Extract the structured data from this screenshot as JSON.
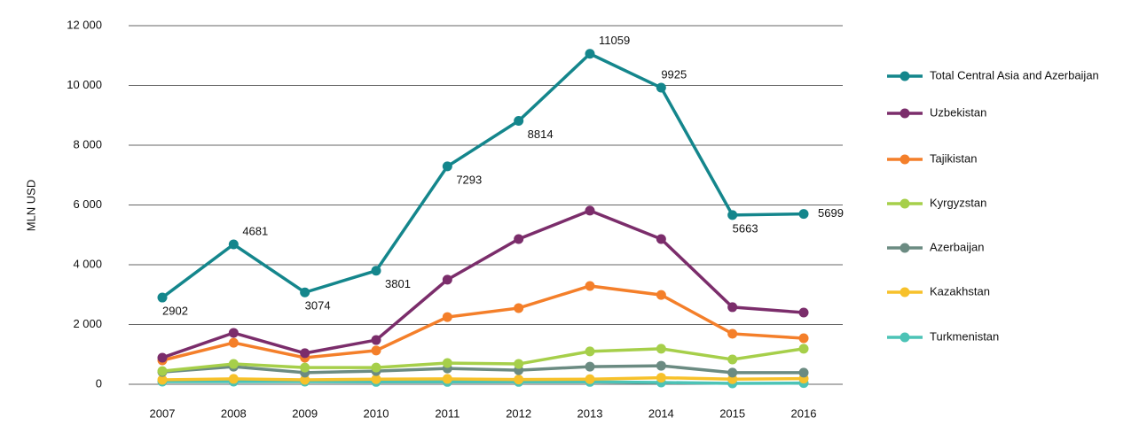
{
  "chart_data": {
    "type": "line",
    "y_label": "MLN USD",
    "categories": [
      "2007",
      "2008",
      "2009",
      "2010",
      "2011",
      "2012",
      "2013",
      "2014",
      "2015",
      "2016"
    ],
    "ylim": [
      0,
      12000
    ],
    "yticks": [
      0,
      {
        "value": 2000,
        "label": "2 000"
      },
      {
        "value": 4000,
        "label": "4 000"
      },
      {
        "value": 6000,
        "label": "6 000"
      },
      {
        "value": 8000,
        "label": "8 000"
      },
      {
        "value": 10000,
        "label": "10 000"
      },
      {
        "value": 12000,
        "label": "12 000"
      }
    ],
    "grid": true,
    "legend": "right",
    "series": [
      {
        "name": "Total Central Asia and Azerbaijan",
        "color": "#14868c",
        "show_labels": true,
        "values": [
          2902,
          4681,
          3074,
          3801,
          7293,
          8814,
          11059,
          9925,
          5663,
          5699
        ]
      },
      {
        "name": "Uzbekistan",
        "color": "#7b2d6b",
        "values": [
          890,
          1720,
          1040,
          1480,
          3500,
          4860,
          5810,
          4860,
          2580,
          2400
        ]
      },
      {
        "name": "Tajikistan",
        "color": "#f47f2a",
        "values": [
          800,
          1390,
          890,
          1130,
          2250,
          2550,
          3290,
          2990,
          1690,
          1540
        ]
      },
      {
        "name": "Kyrgyzstan",
        "color": "#a6cf4a",
        "values": [
          440,
          680,
          560,
          560,
          710,
          680,
          1100,
          1190,
          830,
          1190
        ]
      },
      {
        "name": "Azerbaijan",
        "color": "#6b8b82",
        "values": [
          410,
          590,
          390,
          440,
          530,
          470,
          590,
          620,
          390,
          390
        ]
      },
      {
        "name": "Kazakhstan",
        "color": "#f7c12a",
        "values": [
          150,
          180,
          150,
          170,
          180,
          160,
          170,
          220,
          170,
          190
        ]
      },
      {
        "name": "Turkmenistan",
        "color": "#4cc3b6",
        "values": [
          90,
          90,
          90,
          80,
          80,
          80,
          80,
          60,
          30,
          40
        ]
      }
    ]
  }
}
